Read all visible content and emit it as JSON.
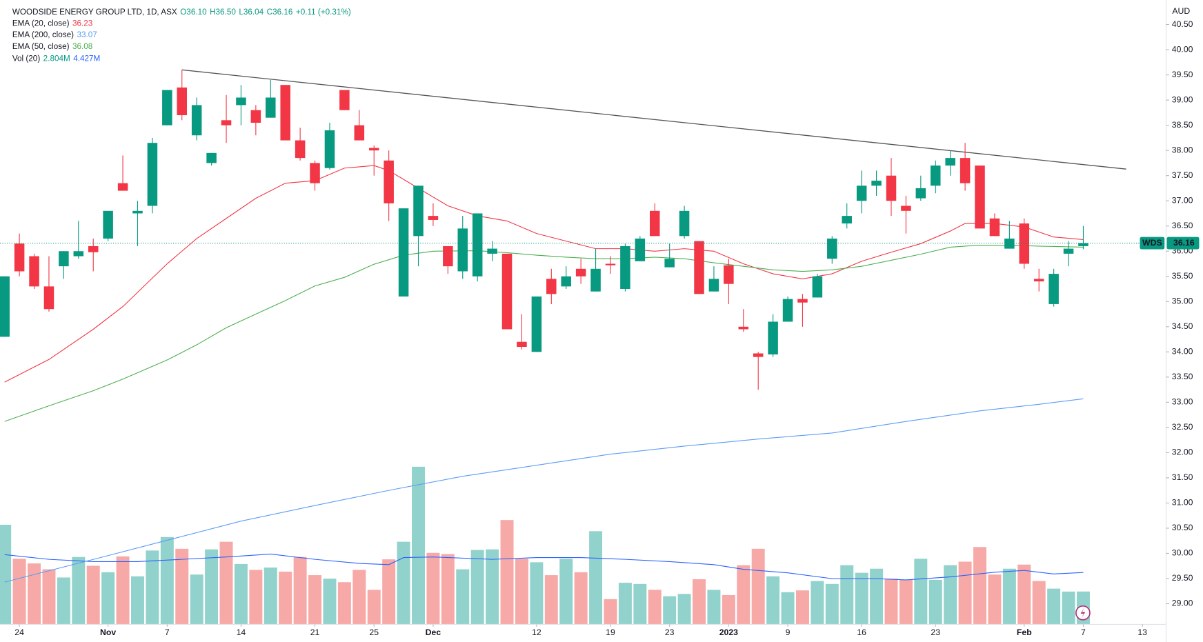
{
  "chart_data": {
    "type": "candlestick",
    "header": {
      "symbol": "WOODSIDE ENERGY GROUP LTD, 1D, ASX",
      "ohlc": [
        "O36.10",
        "H36.50",
        "L36.04",
        "C36.16",
        "+0.11 (+0.31%)"
      ],
      "volume_name": "Vol (20)",
      "volume_values": [
        "2.804M",
        "4.427M"
      ]
    },
    "currency": "AUD",
    "symbol_tag": "WDS",
    "last_price": {
      "value": 36.16,
      "label": "36.16"
    },
    "up_color": "#089981",
    "down_color": "#f23645",
    "volume_up_color": "#92d2cc",
    "volume_down_color": "#f7a9a7",
    "candles": {
      "open": [
        34.3,
        36.15,
        35.9,
        35.3,
        35.7,
        35.9,
        36.1,
        36.25,
        37.35,
        36.75,
        36.9,
        38.5,
        39.25,
        38.3,
        37.75,
        38.6,
        38.9,
        38.8,
        38.65,
        39.3,
        38.2,
        37.75,
        37.65,
        39.2,
        38.5,
        38.05,
        37.8,
        35.1,
        36.3,
        36.7,
        36.1,
        35.6,
        35.5,
        35.95,
        35.95,
        34.2,
        34.0,
        35.45,
        35.3,
        35.65,
        35.2,
        35.75,
        35.25,
        35.8,
        36.8,
        35.68,
        36.3,
        36.2,
        35.2,
        35.72,
        34.5,
        33.97,
        33.95,
        34.6,
        35.05,
        35.08,
        35.85,
        36.55,
        37.0,
        37.3,
        37.5,
        36.9,
        37.05,
        37.3,
        37.7,
        37.85,
        37.7,
        36.65,
        36.05,
        36.55,
        35.45,
        34.95,
        35.95,
        36.1
      ],
      "high": [
        35.5,
        36.35,
        35.95,
        35.9,
        36.0,
        36.6,
        36.25,
        36.8,
        37.9,
        37.0,
        38.25,
        39.2,
        39.6,
        39.05,
        37.95,
        39.1,
        39.3,
        38.9,
        39.4,
        39.3,
        38.45,
        37.8,
        38.55,
        39.2,
        38.8,
        38.1,
        38.0,
        36.85,
        37.3,
        36.95,
        36.1,
        36.7,
        36.75,
        36.2,
        35.95,
        34.75,
        35.1,
        35.65,
        35.7,
        35.85,
        36.05,
        35.9,
        36.15,
        36.3,
        36.95,
        36.15,
        36.9,
        36.2,
        35.7,
        35.85,
        34.85,
        34.0,
        34.75,
        35.1,
        35.15,
        35.55,
        36.3,
        36.95,
        37.6,
        37.6,
        37.85,
        37.1,
        37.5,
        37.8,
        38.0,
        38.15,
        37.7,
        36.75,
        36.6,
        36.65,
        35.65,
        35.65,
        36.2,
        36.5
      ],
      "low": [
        34.3,
        35.5,
        35.25,
        34.8,
        35.45,
        35.85,
        35.6,
        36.2,
        37.2,
        36.1,
        36.75,
        38.5,
        38.6,
        38.2,
        37.7,
        38.15,
        38.5,
        38.3,
        38.65,
        38.2,
        37.8,
        37.2,
        37.62,
        38.8,
        38.2,
        37.5,
        36.6,
        35.1,
        35.7,
        36.5,
        35.55,
        35.45,
        35.4,
        35.8,
        34.45,
        34.05,
        34.0,
        34.95,
        35.25,
        35.35,
        35.2,
        35.55,
        35.2,
        35.8,
        36.3,
        35.68,
        36.25,
        35.15,
        35.2,
        34.95,
        34.4,
        33.25,
        33.9,
        34.6,
        34.5,
        35.08,
        35.75,
        36.45,
        36.75,
        37.1,
        36.7,
        36.35,
        37.0,
        37.15,
        37.5,
        37.2,
        36.45,
        36.3,
        36.05,
        35.65,
        35.2,
        34.9,
        35.7,
        36.04
      ],
      "close": [
        35.5,
        35.6,
        35.3,
        34.85,
        36.0,
        36.0,
        35.98,
        36.8,
        37.2,
        36.8,
        38.15,
        39.2,
        38.7,
        38.9,
        37.95,
        38.5,
        39.05,
        38.55,
        39.05,
        38.2,
        37.85,
        37.35,
        38.4,
        38.8,
        38.2,
        38.0,
        36.95,
        36.85,
        37.3,
        36.62,
        35.7,
        36.45,
        36.75,
        36.05,
        34.45,
        34.1,
        35.1,
        35.15,
        35.5,
        35.5,
        35.65,
        35.72,
        36.1,
        36.25,
        36.3,
        35.85,
        36.8,
        35.15,
        35.45,
        35.35,
        34.45,
        33.9,
        34.6,
        35.05,
        34.98,
        35.5,
        36.25,
        36.7,
        37.3,
        37.4,
        37.0,
        36.8,
        37.25,
        37.7,
        37.85,
        37.35,
        36.45,
        36.3,
        36.25,
        35.75,
        35.4,
        35.55,
        36.05,
        36.16
      ]
    },
    "volume": [
      8.5,
      5.6,
      5.2,
      4.7,
      4.0,
      5.75,
      5.0,
      4.45,
      5.8,
      4.1,
      6.3,
      7.45,
      6.45,
      4.25,
      6.4,
      7.05,
      5.15,
      4.65,
      4.85,
      4.5,
      5.75,
      4.2,
      3.9,
      3.6,
      4.65,
      2.95,
      5.55,
      7.05,
      13.45,
      6.1,
      6.0,
      4.7,
      6.35,
      6.4,
      8.9,
      5.6,
      5.3,
      4.2,
      5.6,
      4.45,
      7.95,
      2.15,
      3.55,
      3.45,
      2.95,
      2.4,
      2.6,
      3.85,
      2.95,
      2.5,
      5.05,
      6.45,
      4.1,
      2.75,
      2.9,
      3.7,
      3.45,
      5.05,
      4.4,
      4.75,
      3.9,
      3.8,
      5.6,
      3.8,
      5.05,
      5.35,
      6.6,
      4.25,
      4.75,
      5.1,
      3.7,
      3.05,
      2.8,
      2.804
    ],
    "volume_ma": {
      "color": "#2962ff",
      "x": [
        0,
        3,
        6,
        9,
        12,
        15,
        18,
        21,
        24,
        26,
        27,
        29,
        33,
        36,
        39,
        42,
        45,
        48,
        50,
        53,
        56,
        59,
        61,
        64,
        67,
        69,
        71,
        73
      ],
      "values": [
        5.95,
        5.55,
        5.35,
        5.35,
        5.55,
        5.75,
        6.0,
        5.55,
        5.2,
        5.1,
        5.7,
        5.75,
        5.55,
        5.7,
        5.7,
        5.55,
        5.35,
        5.1,
        4.7,
        4.4,
        3.9,
        3.9,
        3.8,
        4.05,
        4.45,
        4.6,
        4.3,
        4.427
      ]
    },
    "series": [
      {
        "name": "EMA (20, close)",
        "legend_value": "36.23",
        "color": "#f23645",
        "x": [
          0,
          3,
          6,
          8,
          11,
          13,
          15,
          17,
          19,
          21,
          23,
          25,
          26,
          28,
          30,
          32,
          34,
          36,
          38,
          40,
          42,
          44,
          46,
          48,
          50,
          52,
          54,
          56,
          58,
          60,
          62,
          64,
          65,
          67,
          69,
          71,
          73
        ],
        "values": [
          33.4,
          33.85,
          34.45,
          34.9,
          35.75,
          36.25,
          36.65,
          37.05,
          37.35,
          37.4,
          37.65,
          37.7,
          37.6,
          37.25,
          36.9,
          36.7,
          36.6,
          36.35,
          36.2,
          36.05,
          36.05,
          36.0,
          36.05,
          36.0,
          35.75,
          35.55,
          35.45,
          35.55,
          35.8,
          35.98,
          36.15,
          36.4,
          36.55,
          36.55,
          36.48,
          36.28,
          36.23
        ]
      },
      {
        "name": "EMA (200, close)",
        "legend_value": "33.07",
        "color": "#5b9cf6",
        "x": [
          0,
          6,
          11,
          16,
          21,
          26,
          31,
          36,
          41,
          46,
          51,
          56,
          61,
          66,
          70,
          73
        ],
        "values": [
          29.43,
          29.88,
          30.26,
          30.64,
          30.95,
          31.25,
          31.53,
          31.75,
          31.97,
          32.13,
          32.27,
          32.39,
          32.62,
          32.83,
          32.96,
          33.07
        ]
      },
      {
        "name": "EMA (50, close)",
        "legend_value": "36.08",
        "color": "#4caf50",
        "x": [
          0,
          3,
          6,
          8,
          11,
          13,
          15,
          17,
          19,
          21,
          23,
          25,
          27,
          29,
          32,
          34,
          36,
          38,
          40,
          42,
          44,
          46,
          48,
          50,
          52,
          54,
          56,
          58,
          60,
          62,
          64,
          66,
          68,
          70,
          73
        ],
        "values": [
          32.62,
          32.93,
          33.23,
          33.46,
          33.84,
          34.14,
          34.48,
          34.75,
          35.02,
          35.31,
          35.48,
          35.74,
          35.92,
          36.0,
          36.01,
          35.97,
          35.92,
          35.88,
          35.85,
          35.85,
          35.88,
          35.85,
          35.77,
          35.7,
          35.63,
          35.6,
          35.63,
          35.7,
          35.82,
          35.94,
          36.08,
          36.12,
          36.12,
          36.1,
          36.08
        ]
      }
    ],
    "trendline": {
      "color": "#555555",
      "x": [
        12,
        75.9
      ],
      "values": [
        39.6,
        37.63
      ]
    },
    "ylim": [
      28.59,
      40.987
    ],
    "yticks": [
      {
        "value": 29,
        "label": "29.00"
      },
      {
        "value": 29.5,
        "label": "29.50"
      },
      {
        "value": 30,
        "label": "30.00"
      },
      {
        "value": 30.5,
        "label": "30.50"
      },
      {
        "value": 31,
        "label": "31.00"
      },
      {
        "value": 31.5,
        "label": "31.50"
      },
      {
        "value": 32,
        "label": "32.00"
      },
      {
        "value": 32.5,
        "label": "32.50"
      },
      {
        "value": 33,
        "label": "33.00"
      },
      {
        "value": 33.5,
        "label": "33.50"
      },
      {
        "value": 34,
        "label": "34.00"
      },
      {
        "value": 34.5,
        "label": "34.50"
      },
      {
        "value": 35,
        "label": "35.00"
      },
      {
        "value": 35.5,
        "label": "35.50"
      },
      {
        "value": 36,
        "label": "36.00"
      },
      {
        "value": 36.5,
        "label": "36.50"
      },
      {
        "value": 37,
        "label": "37.00"
      },
      {
        "value": 37.5,
        "label": "37.50"
      },
      {
        "value": 38,
        "label": "38.00"
      },
      {
        "value": 38.5,
        "label": "38.50"
      },
      {
        "value": 39,
        "label": "39.00"
      },
      {
        "value": 39.5,
        "label": "39.50"
      },
      {
        "value": 40,
        "label": "40.00"
      },
      {
        "value": 40.5,
        "label": "40.50"
      }
    ],
    "xlim": [
      -0.3125,
      78.6
    ],
    "xticks": [
      {
        "value": 1,
        "label": "24"
      },
      {
        "value": 7,
        "label": "Nov"
      },
      {
        "value": 11,
        "label": "7"
      },
      {
        "value": 16,
        "label": "14"
      },
      {
        "value": 21,
        "label": "21"
      },
      {
        "value": 25,
        "label": "25"
      },
      {
        "value": 29,
        "label": "Dec"
      },
      {
        "value": 36,
        "label": "12"
      },
      {
        "value": 41,
        "label": "19"
      },
      {
        "value": 45,
        "label": "23"
      },
      {
        "value": 49,
        "label": "2023"
      },
      {
        "value": 53,
        "label": "9"
      },
      {
        "value": 58,
        "label": "16"
      },
      {
        "value": 63,
        "label": "23"
      },
      {
        "value": 69,
        "label": "Feb"
      },
      {
        "value": 73,
        "label": "7"
      },
      {
        "value": 77,
        "label": "13"
      }
    ]
  }
}
